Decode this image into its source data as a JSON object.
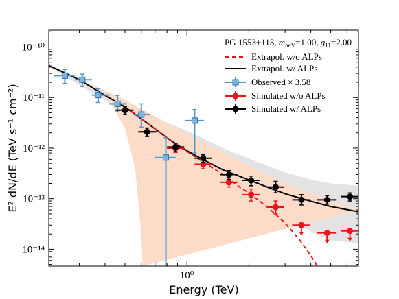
{
  "chart_data": {
    "type": "scatter",
    "title": "PG 1553+113, m_neV=1.00, g_11=2.00",
    "xlabel": "Energy (TeV)",
    "ylabel": "E² dN/dE (TeV s⁻¹ cm⁻²)",
    "xscale": "log",
    "yscale": "log",
    "xlim": [
      0.213,
      6.82
    ],
    "ylim": [
      4.64e-15,
      2.15e-10
    ],
    "y_ticks": [
      {
        "value": 1e-14,
        "label": "10⁻¹⁴"
      },
      {
        "value": 1e-13,
        "label": "10⁻¹³"
      },
      {
        "value": 1e-12,
        "label": "10⁻¹²"
      },
      {
        "value": 1e-11,
        "label": "10⁻¹¹"
      },
      {
        "value": 1e-10,
        "label": "10⁻¹⁰"
      }
    ],
    "x_ticks": [
      {
        "value": 1.0,
        "label": "10⁰"
      }
    ],
    "title_parts": {
      "source": "PG 1553+113, ",
      "m_var": "m",
      "m_sub": "neV",
      "m_val": "=1.00, ",
      "g_var": "g",
      "g_sub": "11",
      "g_val": "=2.00"
    },
    "legend": [
      {
        "key": "extrapol_no_alps",
        "label": "Extrapol. w/o ALPs",
        "style": "dashed-line",
        "color": "#e8161c"
      },
      {
        "key": "extrapol_alps",
        "label": "Extrapol. w/ ALPs",
        "style": "solid-line",
        "color": "#000000"
      },
      {
        "key": "observed",
        "label": "Observed × 3.58",
        "style": "square",
        "color": "#4d95c8"
      },
      {
        "key": "sim_no_alps",
        "label": "Simulated w/o ALPs",
        "style": "circle",
        "color": "#e8161c"
      },
      {
        "key": "sim_alps",
        "label": "Simulated w/ ALPs",
        "style": "circle",
        "color": "#000000"
      }
    ],
    "bands": {
      "no_alps_band": {
        "color": "#fcdcc8",
        "upper": [
          [
            0.213,
            4.6e-11
          ],
          [
            0.5,
            9e-12
          ],
          [
            1.0,
            1.9e-12
          ],
          [
            2.0,
            4.5e-13
          ],
          [
            3.0,
            2e-13
          ],
          [
            4.0,
            1.3e-13
          ],
          [
            5.0,
            9e-14
          ],
          [
            6.82,
            6e-14
          ]
        ],
        "lower": [
          [
            0.213,
            4e-11
          ],
          [
            0.3,
            2.5e-11
          ],
          [
            0.4,
            1.2e-11
          ],
          [
            0.5,
            2.5e-12
          ],
          [
            0.56,
            4e-13
          ],
          [
            0.6,
            2e-14
          ],
          [
            0.61,
            4.64e-15
          ]
        ]
      },
      "alps_band": {
        "color": "#e3e3e3",
        "upper": [
          [
            0.213,
            4.7e-11
          ],
          [
            0.5,
            8e-12
          ],
          [
            0.8,
            3.2e-12
          ],
          [
            1.0,
            2.2e-12
          ],
          [
            1.5,
            1e-12
          ],
          [
            2.0,
            6.2e-13
          ],
          [
            3.0,
            3.3e-13
          ],
          [
            4.0,
            2.4e-13
          ],
          [
            5.0,
            2e-13
          ],
          [
            6.82,
            1.8e-13
          ]
        ],
        "lower": [
          [
            0.213,
            4.1e-11
          ],
          [
            0.5,
            5e-12
          ],
          [
            1.0,
            7e-13
          ],
          [
            2.0,
            1.5e-13
          ],
          [
            3.0,
            5e-14
          ],
          [
            4.0,
            2.2e-14
          ],
          [
            5.0,
            1.5e-14
          ],
          [
            6.82,
            1.3e-14
          ]
        ]
      }
    },
    "curves": {
      "extrapol_alps": [
        [
          0.213,
          4.3e-11
        ],
        [
          0.3,
          2.25e-11
        ],
        [
          0.4,
          1.1e-11
        ],
        [
          0.5,
          6.5e-12
        ],
        [
          0.6,
          3.8e-12
        ],
        [
          0.7,
          2.4e-12
        ],
        [
          0.8,
          1.6e-12
        ],
        [
          0.9,
          1.15e-12
        ],
        [
          1.0,
          8.9e-13
        ],
        [
          1.2,
          5.9e-13
        ],
        [
          1.5,
          3.7e-13
        ],
        [
          2.0,
          2.35e-13
        ],
        [
          2.5,
          1.65e-13
        ],
        [
          3.0,
          1.25e-13
        ],
        [
          4.0,
          8.9e-14
        ],
        [
          5.0,
          7e-14
        ],
        [
          6.82,
          5.5e-14
        ]
      ],
      "extrapol_no_alps": [
        [
          0.5,
          6.5e-12
        ],
        [
          0.6,
          3.8e-12
        ],
        [
          0.7,
          2.4e-12
        ],
        [
          0.8,
          1.6e-12
        ],
        [
          0.9,
          1.12e-12
        ],
        [
          1.0,
          8.6e-13
        ],
        [
          1.2,
          5.3e-13
        ],
        [
          1.5,
          3e-13
        ],
        [
          1.8,
          1.7e-13
        ],
        [
          2.0,
          1.3e-13
        ],
        [
          2.5,
          6.5e-14
        ],
        [
          3.0,
          3.3e-14
        ],
        [
          3.5,
          1.6e-14
        ],
        [
          4.0,
          7.5e-15
        ],
        [
          4.3,
          4.64e-15
        ]
      ]
    },
    "series": [
      {
        "key": "observed",
        "marker": "square",
        "color": "#4d95c8",
        "points": [
          {
            "x": 0.255,
            "y": 2.7e-11,
            "xlo": 0.225,
            "xhi": 0.285,
            "ylo": 1.9e-11,
            "yhi": 3.6e-11
          },
          {
            "x": 0.31,
            "y": 2.25e-11,
            "xlo": 0.285,
            "xhi": 0.345,
            "ylo": 1.65e-11,
            "yhi": 2.9e-11
          },
          {
            "x": 0.37,
            "y": 1.12e-11,
            "xlo": 0.345,
            "xhi": 0.42,
            "ylo": 8e-12,
            "yhi": 1.5e-11
          },
          {
            "x": 0.46,
            "y": 7.5e-12,
            "xlo": 0.42,
            "xhi": 0.51,
            "ylo": 5.2e-12,
            "yhi": 1.1e-11
          },
          {
            "x": 0.6,
            "y": 4.6e-12,
            "xlo": 0.55,
            "xhi": 0.66,
            "ylo": 2.6e-12,
            "yhi": 7.5e-12
          },
          {
            "x": 0.79,
            "y": 6.5e-13,
            "xlo": 0.7,
            "xhi": 0.88,
            "ylo": 4.64e-15,
            "yhi": 1.6e-12
          },
          {
            "x": 1.09,
            "y": 3.5e-12,
            "xlo": 0.98,
            "xhi": 1.21,
            "ylo": 8e-13,
            "yhi": 5.8e-12
          }
        ]
      },
      {
        "key": "sim_no_alps",
        "marker": "circle",
        "color": "#e8161c",
        "points": [
          {
            "x": 0.64,
            "y": 2.1e-12,
            "xlo": 0.58,
            "xhi": 0.71,
            "ylo": 1.7e-12,
            "yhi": 2.5e-12
          },
          {
            "x": 0.88,
            "y": 1e-12,
            "xlo": 0.8,
            "xhi": 0.97,
            "ylo": 8.2e-13,
            "yhi": 1.2e-12
          },
          {
            "x": 1.2,
            "y": 4.8e-13,
            "xlo": 1.09,
            "xhi": 1.32,
            "ylo": 3.9e-13,
            "yhi": 5.9e-13
          },
          {
            "x": 1.6,
            "y": 2.1e-13,
            "xlo": 1.45,
            "xhi": 1.76,
            "ylo": 1.7e-13,
            "yhi": 2.6e-13
          },
          {
            "x": 2.05,
            "y": 1.2e-13,
            "xlo": 1.86,
            "xhi": 2.26,
            "ylo": 9e-14,
            "yhi": 1.55e-13
          },
          {
            "x": 2.7,
            "y": 6.8e-14,
            "xlo": 2.45,
            "xhi": 2.97,
            "ylo": 5e-14,
            "yhi": 9e-14
          },
          {
            "x": 3.6,
            "y": 3e-14,
            "xlo": 3.25,
            "xhi": 3.95,
            "ul": true
          },
          {
            "x": 4.8,
            "y": 2.1e-14,
            "xlo": 4.3,
            "xhi": 5.3,
            "ul": true
          },
          {
            "x": 6.2,
            "y": 2.3e-14,
            "xlo": 5.6,
            "xhi": 6.82,
            "ul": true
          }
        ]
      },
      {
        "key": "sim_alps",
        "marker": "circle",
        "color": "#000000",
        "points": [
          {
            "x": 0.5,
            "y": 5.6e-12,
            "xlo": 0.45,
            "xhi": 0.55,
            "ylo": 4.6e-12,
            "yhi": 6.6e-12
          },
          {
            "x": 0.64,
            "y": 2.1e-12,
            "xlo": 0.58,
            "xhi": 0.71,
            "ylo": 1.7e-12,
            "yhi": 2.5e-12
          },
          {
            "x": 0.88,
            "y": 1.05e-12,
            "xlo": 0.8,
            "xhi": 0.97,
            "ylo": 8.5e-13,
            "yhi": 1.25e-12
          },
          {
            "x": 1.2,
            "y": 6.3e-13,
            "xlo": 1.09,
            "xhi": 1.32,
            "ylo": 5.2e-13,
            "yhi": 7.4e-13
          },
          {
            "x": 1.6,
            "y": 3e-13,
            "xlo": 1.45,
            "xhi": 1.76,
            "ylo": 2.4e-13,
            "yhi": 3.6e-13
          },
          {
            "x": 2.05,
            "y": 2.3e-13,
            "xlo": 1.86,
            "xhi": 2.26,
            "ylo": 1.8e-13,
            "yhi": 2.8e-13
          },
          {
            "x": 2.7,
            "y": 1.7e-13,
            "xlo": 2.45,
            "xhi": 2.97,
            "ylo": 1.3e-13,
            "yhi": 2.2e-13
          },
          {
            "x": 3.6,
            "y": 9.5e-14,
            "xlo": 3.25,
            "xhi": 3.95,
            "ylo": 7.5e-14,
            "yhi": 1.2e-13
          },
          {
            "x": 4.8,
            "y": 9.5e-14,
            "xlo": 4.3,
            "xhi": 5.3,
            "ylo": 7.8e-14,
            "yhi": 1.15e-13
          },
          {
            "x": 6.2,
            "y": 1.1e-13,
            "xlo": 5.6,
            "xhi": 6.82,
            "ylo": 9e-14,
            "yhi": 1.3e-13
          }
        ]
      }
    ],
    "grid": false,
    "legend_position": "top-right"
  }
}
